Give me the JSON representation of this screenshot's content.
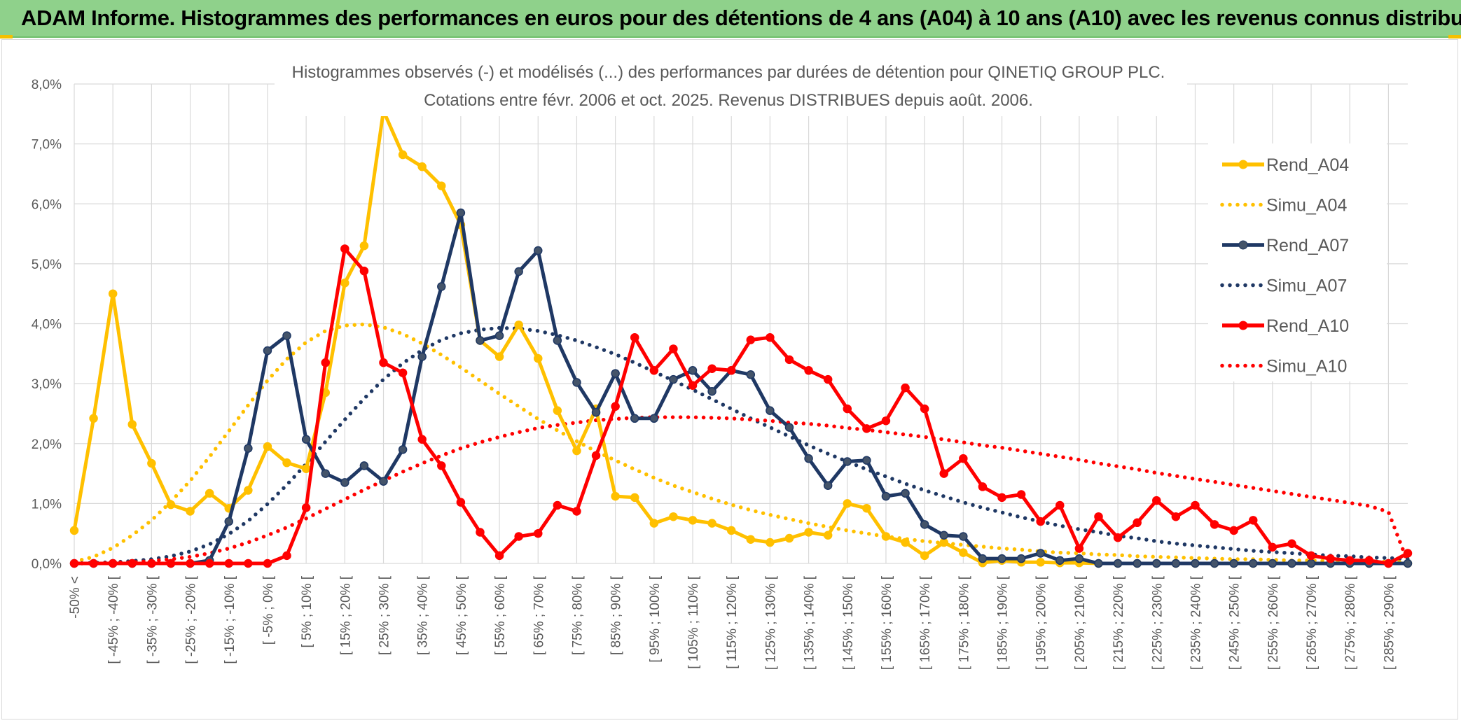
{
  "banner": {
    "title": "ADAM Informe. Histogrammes des performances en euros pour des détentions de 4 ans (A04) à 10 ans (A10) avec les revenus connus distribués"
  },
  "colors": {
    "banner_bg": "#8fd18b",
    "A04": "#ffc000",
    "A07": "#1f3864",
    "A10": "#ff0000"
  },
  "chart_data": {
    "type": "line",
    "title": "Histogrammes observés (-) et modélisés (...) des performances par durées de détention pour QINETIQ GROUP PLC.",
    "subtitle": "Cotations entre févr. 2006 et oct. 2025. Revenus DISTRIBUES depuis août. 2006.",
    "xlabel": "",
    "ylabel": "",
    "ylim": [
      0,
      0.08
    ],
    "yticks": [
      "0,0%",
      "1,0%",
      "2,0%",
      "3,0%",
      "4,0%",
      "5,0%",
      "6,0%",
      "7,0%",
      "8,0%"
    ],
    "grid": true,
    "legend_position": "top-right",
    "categories": [
      "-50% <",
      "[ -50% ; -45% [",
      "[ -45% ; -40% [",
      "[ -40% ; -35% [",
      "[ -35% ; -30% [",
      "[ -30% ; -25% [",
      "[ -25% ; -20% [",
      "[ -20% ; -15% [",
      "[ -15% ; -10% [",
      "[ -10% ; -5% [",
      "[ -5% ; 0% [",
      "[ 0% ; 5% [",
      "[ 5% ; 10% [",
      "[ 10% ; 15% [",
      "[ 15% ; 20% [",
      "[ 20% ; 25% [",
      "[ 25% ; 30% [",
      "[ 30% ; 35% [",
      "[ 35% ; 40% [",
      "[ 40% ; 45% [",
      "[ 45% ; 50% [",
      "[ 50% ; 55% [",
      "[ 55% ; 60% [",
      "[ 60% ; 65% [",
      "[ 65% ; 70% [",
      "[ 70% ; 75% [",
      "[ 75% ; 80% [",
      "[ 80% ; 85% [",
      "[ 85% ; 90% [",
      "[ 90% ; 95% [",
      "[ 95% ; 100% [",
      "[ 100% ; 105% [",
      "[ 105% ; 110% [",
      "[ 110% ; 115% [",
      "[ 115% ; 120% [",
      "[ 120% ; 125% [",
      "[ 125% ; 130% [",
      "[ 130% ; 135% [",
      "[ 135% ; 140% [",
      "[ 140% ; 145% [",
      "[ 145% ; 150% [",
      "[ 150% ; 155% [",
      "[ 155% ; 160% [",
      "[ 160% ; 165% [",
      "[ 165% ; 170% [",
      "[ 170% ; 175% [",
      "[ 175% ; 180% [",
      "[ 180% ; 185% [",
      "[ 185% ; 190% [",
      "[ 190% ; 195% [",
      "[ 195% ; 200% [",
      "[ 200% ; 205% [",
      "[ 205% ; 210% [",
      "[ 210% ; 215% [",
      "[ 215% ; 220% [",
      "[ 220% ; 225% [",
      "[ 225% ; 230% [",
      "[ 230% ; 235% [",
      "[ 235% ; 240% [",
      "[ 240% ; 245% [",
      "[ 245% ; 250% [",
      "[ 250% ; 255% [",
      "[ 255% ; 260% [",
      "[ 260% ; 265% [",
      "[ 265% ; 270% [",
      "[ 270% ; 275% [",
      "[ 275% ; 280% [",
      "[ 280% ; 285% [",
      "[ 285% ; 290% [",
      "[ 290% ; 295% ["
    ],
    "visible_tick_labels": [
      "-50% <",
      "[ -45% ; -40% [",
      "[ -35% ; -30% [",
      "[ -25% ; -20% [",
      "[ -15% ; -10% [",
      "[ -5% ; 0% [",
      "[ 5% ; 10% [",
      "[ 15% ; 20% [",
      "[ 25% ; 30% [",
      "[ 35% ; 40% [",
      "[ 45% ; 50% [",
      "[ 55% ; 60% [",
      "[ 65% ; 70% [",
      "[ 75% ; 80% [",
      "[ 85% ; 90% [",
      "[ 95% ; 100% [",
      "[ 105% ; 110% [",
      "[ 115% ; 120% [",
      "[ 125% ; 130% [",
      "[ 135% ; 140% [",
      "[ 145% ; 150% [",
      "[ 155% ; 160% [",
      "[ 165% ; 170% [",
      "[ 175% ; 180% [",
      "[ 185% ; 190% [",
      "[ 195% ; 200% [",
      "[ 205% ; 210% [",
      "[ 215% ; 220% [",
      "[ 225% ; 230% [",
      "[ 235% ; 240% [",
      "[ 245% ; 250% [",
      "[ 255% ; 260% [",
      "[ 265% ; 270% [",
      "[ 275% ; 280% [",
      "[ 285% ; 290% ["
    ],
    "series": [
      {
        "name": "Rend_A04",
        "style": "solid",
        "color": "#ffc000",
        "markers": true,
        "values": [
          0.0055,
          0.0242,
          0.045,
          0.0232,
          0.0167,
          0.0098,
          0.0087,
          0.0117,
          0.0092,
          0.0122,
          0.0195,
          0.0168,
          0.0158,
          0.0285,
          0.0468,
          0.053,
          0.0755,
          0.0682,
          0.0662,
          0.063,
          0.0565,
          0.0372,
          0.0345,
          0.0398,
          0.0342,
          0.0255,
          0.0188,
          0.0258,
          0.0112,
          0.011,
          0.0067,
          0.0078,
          0.0072,
          0.0067,
          0.0055,
          0.004,
          0.0035,
          0.0042,
          0.0052,
          0.0047,
          0.01,
          0.0092,
          0.0045,
          0.0035,
          0.0013,
          0.0035,
          0.0018,
          0.0001,
          0.0005,
          0.0002,
          0.0002,
          0.0001,
          0.0001,
          0,
          0,
          0,
          0,
          0,
          0,
          0,
          0,
          0,
          0,
          0,
          0,
          0,
          0,
          0,
          0,
          0
        ]
      },
      {
        "name": "Simu_A04",
        "style": "dotted",
        "color": "#ffc000",
        "markers": false,
        "values": [
          0.0003,
          0.0011,
          0.0026,
          0.0047,
          0.0072,
          0.0103,
          0.0138,
          0.0178,
          0.0221,
          0.0264,
          0.0305,
          0.0341,
          0.0369,
          0.0388,
          0.0397,
          0.0399,
          0.0394,
          0.0383,
          0.0367,
          0.0348,
          0.0327,
          0.0305,
          0.0283,
          0.0262,
          0.0241,
          0.0222,
          0.0204,
          0.0187,
          0.0172,
          0.0157,
          0.0143,
          0.013,
          0.0119,
          0.0108,
          0.0098,
          0.0089,
          0.0081,
          0.0074,
          0.0067,
          0.0061,
          0.0055,
          0.005,
          0.0045,
          0.0041,
          0.0037,
          0.0034,
          0.0031,
          0.0028,
          0.0025,
          0.0023,
          0.002,
          0.0018,
          0.0017,
          0.0015,
          0.0014,
          0.0012,
          0.0011,
          0.001,
          0.0009,
          0.0008,
          0.0007,
          0.0007,
          0.0006,
          0.0005,
          0.0005,
          0.0004,
          0.0004,
          0.0003,
          0.0003,
          0.0003
        ]
      },
      {
        "name": "Rend_A07",
        "style": "solid",
        "color": "#1f3864",
        "markers": true,
        "values": [
          0,
          0,
          0,
          0,
          0,
          0,
          0,
          0.0005,
          0.007,
          0.0192,
          0.0355,
          0.038,
          0.0207,
          0.015,
          0.0135,
          0.0163,
          0.0137,
          0.019,
          0.0345,
          0.0462,
          0.0585,
          0.0372,
          0.038,
          0.0487,
          0.0522,
          0.0372,
          0.0302,
          0.0252,
          0.0317,
          0.0242,
          0.0242,
          0.0307,
          0.0322,
          0.0287,
          0.0322,
          0.0315,
          0.0255,
          0.0227,
          0.0175,
          0.013,
          0.017,
          0.0172,
          0.0112,
          0.0117,
          0.0065,
          0.0047,
          0.0045,
          0.0008,
          0.0008,
          0.0008,
          0.0017,
          0.0005,
          0.0008,
          0,
          0,
          0,
          0,
          0,
          0,
          0,
          0,
          0,
          0,
          0,
          0,
          0,
          0,
          0,
          0,
          0
        ]
      },
      {
        "name": "Simu_A07",
        "style": "dotted",
        "color": "#1f3864",
        "markers": false,
        "values": [
          0,
          0.0001,
          0.0002,
          0.0004,
          0.0007,
          0.0012,
          0.002,
          0.0032,
          0.0049,
          0.0071,
          0.0099,
          0.0131,
          0.0166,
          0.0203,
          0.024,
          0.0275,
          0.0307,
          0.0334,
          0.0356,
          0.0373,
          0.0384,
          0.039,
          0.0393,
          0.0392,
          0.0388,
          0.0381,
          0.0372,
          0.0361,
          0.0349,
          0.0335,
          0.032,
          0.0305,
          0.029,
          0.0274,
          0.0258,
          0.0242,
          0.0227,
          0.0212,
          0.0197,
          0.0183,
          0.017,
          0.0157,
          0.0145,
          0.0133,
          0.0122,
          0.0112,
          0.0102,
          0.0093,
          0.0085,
          0.0077,
          0.007,
          0.0063,
          0.0057,
          0.0052,
          0.0046,
          0.0042,
          0.0037,
          0.0033,
          0.003,
          0.0027,
          0.0024,
          0.0021,
          0.0019,
          0.0017,
          0.0015,
          0.0013,
          0.0012,
          0.001,
          0.0009,
          0.0008
        ]
      },
      {
        "name": "Rend_A10",
        "style": "solid",
        "color": "#ff0000",
        "markers": true,
        "values": [
          0,
          0,
          0,
          0,
          0,
          0,
          0,
          0,
          0,
          0,
          0,
          0.0013,
          0.0093,
          0.0335,
          0.0525,
          0.0488,
          0.0335,
          0.0318,
          0.0207,
          0.0163,
          0.0102,
          0.0052,
          0.0013,
          0.0045,
          0.005,
          0.0097,
          0.0087,
          0.018,
          0.0262,
          0.0377,
          0.0322,
          0.0358,
          0.0297,
          0.0325,
          0.0322,
          0.0373,
          0.0377,
          0.034,
          0.0322,
          0.0307,
          0.0258,
          0.0225,
          0.0238,
          0.0293,
          0.0258,
          0.015,
          0.0175,
          0.0128,
          0.011,
          0.0115,
          0.007,
          0.0097,
          0.0025,
          0.0078,
          0.0043,
          0.0068,
          0.0105,
          0.0078,
          0.0097,
          0.0065,
          0.0055,
          0.0072,
          0.0027,
          0.0033,
          0.0013,
          0.0008,
          0.0005,
          0.0005,
          0,
          0.0017
        ]
      },
      {
        "name": "Simu_A10",
        "style": "dotted",
        "color": "#ff0000",
        "markers": false,
        "values": [
          0,
          0,
          0.0001,
          0.0002,
          0.0004,
          0.0007,
          0.0011,
          0.0017,
          0.0025,
          0.0035,
          0.0047,
          0.006,
          0.0075,
          0.0091,
          0.0107,
          0.0123,
          0.0138,
          0.0153,
          0.0167,
          0.018,
          0.0192,
          0.0202,
          0.0211,
          0.0219,
          0.0226,
          0.0231,
          0.0235,
          0.0239,
          0.0241,
          0.0243,
          0.0244,
          0.0244,
          0.0244,
          0.0243,
          0.0242,
          0.024,
          0.0238,
          0.0235,
          0.0233,
          0.023,
          0.0226,
          0.0223,
          0.0219,
          0.0215,
          0.0211,
          0.0207,
          0.0202,
          0.0197,
          0.0193,
          0.0188,
          0.0183,
          0.0178,
          0.0173,
          0.0167,
          0.0162,
          0.0157,
          0.0151,
          0.0146,
          0.0141,
          0.0136,
          0.0131,
          0.0126,
          0.0121,
          0.0116,
          0.0111,
          0.0106,
          0.0101,
          0.0096,
          0.0086,
          0.0002
        ]
      }
    ]
  }
}
